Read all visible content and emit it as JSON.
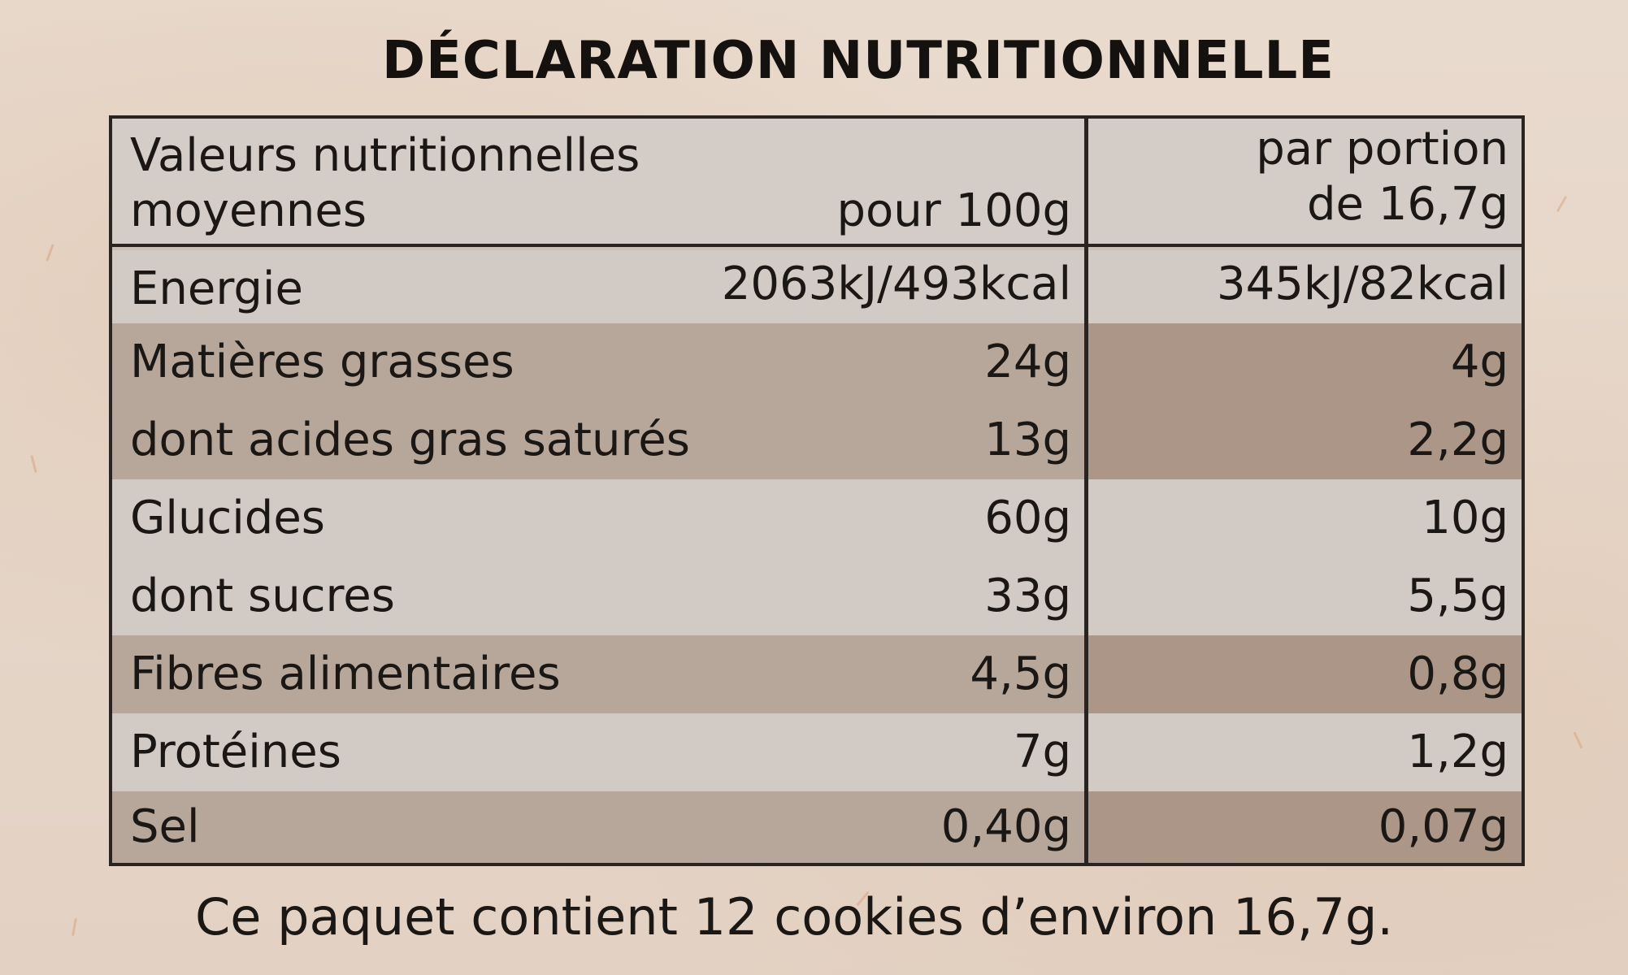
{
  "title": "DÉCLARATION NUTRITIONNELLE",
  "table": {
    "header": {
      "label_line1": "Valeurs nutritionnelles",
      "label_line2": "moyennes",
      "col1": "pour 100g",
      "col2_line1": "par portion",
      "col2_line2": "de 16,7g"
    },
    "rows": [
      {
        "label": "Energie",
        "per100": "2063kJ/493kcal",
        "portion": "345kJ/82kcal"
      },
      {
        "label": "Matières grasses",
        "per100": "24g",
        "portion": "4g"
      },
      {
        "label": "dont acides gras saturés",
        "per100": "13g",
        "portion": "2,2g"
      },
      {
        "label": "Glucides",
        "per100": "60g",
        "portion": "10g"
      },
      {
        "label": "dont sucres",
        "per100": "33g",
        "portion": "5,5g"
      },
      {
        "label": "Fibres alimentaires",
        "per100": "4,5g",
        "portion": "0,8g"
      },
      {
        "label": "Protéines",
        "per100": "7g",
        "portion": "1,2g"
      },
      {
        "label": "Sel",
        "per100": "0,40g",
        "portion": "0,07g"
      }
    ]
  },
  "footer": "Ce paquet contient 12 cookies d’environ 16,7g."
}
